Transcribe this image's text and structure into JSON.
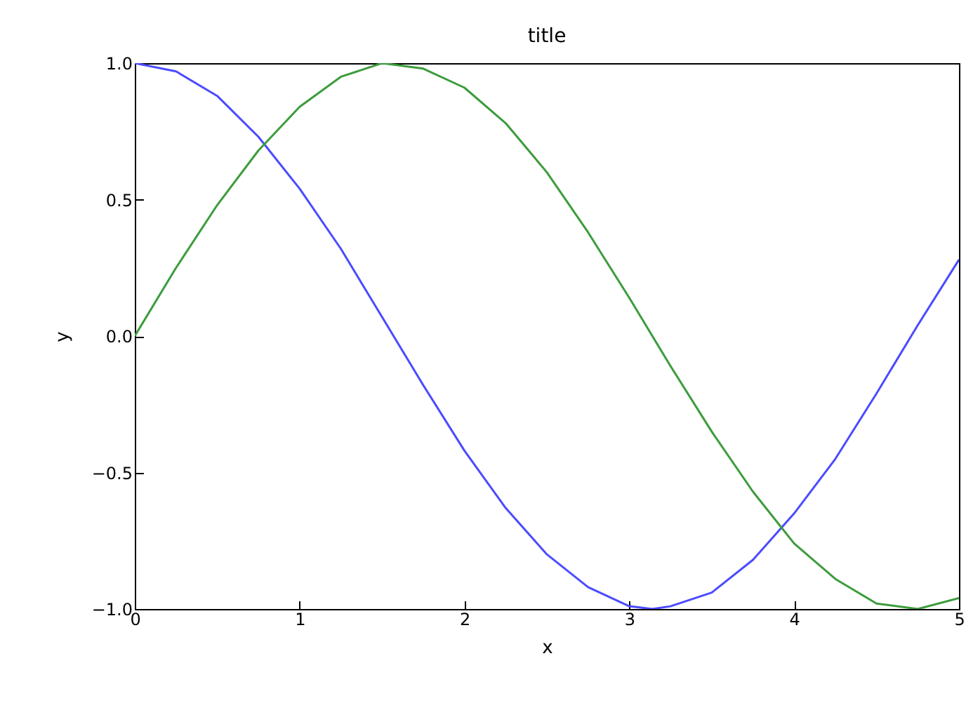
{
  "chart_data": {
    "type": "line",
    "title": "title",
    "xlabel": "x",
    "ylabel": "y",
    "x": [
      0,
      0.25,
      0.5,
      0.75,
      1,
      1.25,
      1.5,
      1.75,
      2,
      2.25,
      2.5,
      2.75,
      3,
      3.14,
      3.25,
      3.5,
      3.75,
      4,
      4.25,
      4.5,
      4.75,
      5
    ],
    "series": [
      {
        "color": "#4b4bff",
        "values": [
          1,
          0.97,
          0.88,
          0.73,
          0.54,
          0.32,
          0.07,
          -0.18,
          -0.42,
          -0.63,
          -0.8,
          -0.92,
          -0.99,
          -1,
          -0.99,
          -0.94,
          -0.82,
          -0.65,
          -0.45,
          -0.21,
          0.04,
          0.28
        ]
      },
      {
        "color": "#3c9c3c",
        "values": [
          0,
          0.25,
          0.48,
          0.68,
          0.84,
          0.95,
          1,
          0.98,
          0.91,
          0.78,
          0.6,
          0.38,
          0.14,
          0,
          -0.11,
          -0.35,
          -0.57,
          -0.76,
          -0.89,
          -0.98,
          -1,
          -0.96
        ]
      }
    ],
    "xlim": [
      0,
      5
    ],
    "ylim": [
      -1,
      1
    ],
    "xticks": [
      0,
      1,
      2,
      3,
      4,
      5
    ],
    "yticks": [
      {
        "value": -1,
        "label": "−1.0"
      },
      {
        "value": -0.5,
        "label": "−0.5"
      },
      {
        "value": 0,
        "label": "0.0"
      },
      {
        "value": 0.5,
        "label": "0.5"
      },
      {
        "value": 1,
        "label": "1.0"
      }
    ],
    "grid": false
  }
}
